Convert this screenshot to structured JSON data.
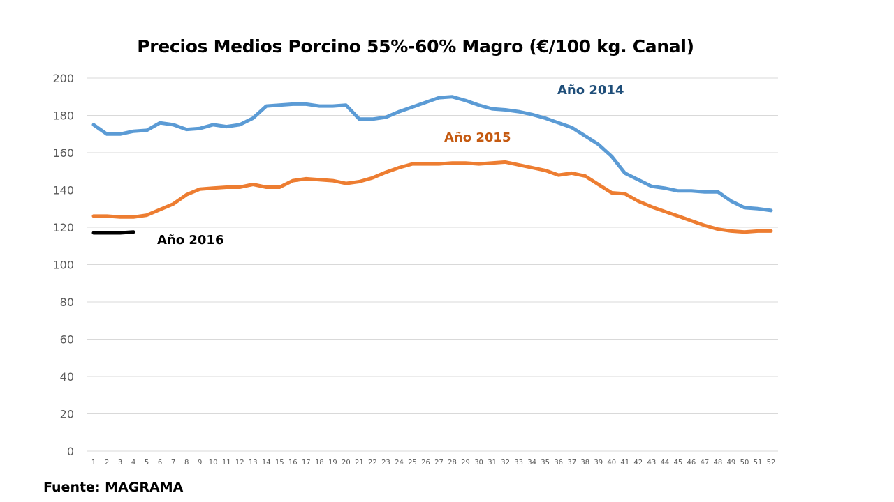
{
  "footer": "Fuente: MAGRAMA",
  "chart_data": {
    "type": "line",
    "title": "Precios Medios Porcino 55%-60%  Magro (€/100 kg. Canal)",
    "xlabel": "",
    "ylabel": "",
    "ylim": [
      0,
      200
    ],
    "yticks": [
      0,
      20,
      40,
      60,
      80,
      100,
      120,
      140,
      160,
      180,
      200
    ],
    "grid": true,
    "legend": "inline labels",
    "x": [
      1,
      2,
      3,
      4,
      5,
      6,
      7,
      8,
      9,
      10,
      11,
      12,
      13,
      14,
      15,
      16,
      17,
      18,
      19,
      20,
      21,
      22,
      23,
      24,
      25,
      26,
      27,
      28,
      29,
      30,
      31,
      32,
      33,
      34,
      35,
      36,
      37,
      38,
      39,
      40,
      41,
      42,
      43,
      44,
      45,
      46,
      47,
      48,
      49,
      50,
      51,
      52
    ],
    "series": [
      {
        "name": "Año 2014",
        "color": "#5B9BD5",
        "label_color": "#1F4E79",
        "values": [
          175,
          170,
          170,
          171.5,
          172,
          176,
          175,
          172.5,
          173,
          175,
          174,
          175,
          178.5,
          185,
          185.5,
          186,
          186,
          185,
          185,
          185.5,
          178,
          178,
          179,
          182,
          184.5,
          187,
          189.5,
          190,
          188,
          185.5,
          183.5,
          183,
          182,
          180.5,
          178.5,
          176,
          173.5,
          169,
          164.5,
          158,
          149,
          145.5,
          142,
          141,
          139.5,
          139.5,
          139,
          139,
          134,
          130.5,
          130,
          129
        ]
      },
      {
        "name": "Año 2015",
        "color": "#ED7D31",
        "label_color": "#C55A11",
        "values": [
          126,
          126,
          125.5,
          125.5,
          126.5,
          129.5,
          132.5,
          137.5,
          140.5,
          141,
          141.5,
          141.5,
          143,
          141.5,
          141.5,
          145,
          146,
          145.5,
          145,
          143.5,
          144.5,
          146.5,
          149.5,
          152,
          154,
          154,
          154,
          154.5,
          154.5,
          154,
          154.5,
          155,
          153.5,
          152,
          150.5,
          148,
          149,
          147.5,
          143,
          138.5,
          138,
          134,
          131,
          128.5,
          126,
          123.5,
          121,
          119,
          118,
          117.5,
          118,
          118
        ]
      },
      {
        "name": "Año 2016",
        "color": "#000000",
        "label_color": "#000000",
        "values": [
          117,
          117,
          117,
          117.5
        ]
      }
    ]
  }
}
